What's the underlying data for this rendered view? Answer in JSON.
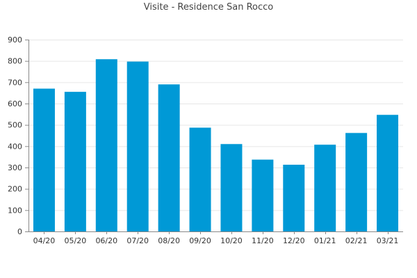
{
  "chart_data": {
    "type": "bar",
    "title": "Visite - Residence San Rocco",
    "xlabel": "",
    "ylabel": "",
    "categories": [
      "04/20",
      "05/20",
      "06/20",
      "07/20",
      "08/20",
      "09/20",
      "10/20",
      "11/20",
      "12/20",
      "01/21",
      "02/21",
      "03/21"
    ],
    "values": [
      670,
      655,
      808,
      797,
      690,
      487,
      410,
      337,
      313,
      407,
      462,
      547
    ],
    "ylim": [
      0,
      900
    ],
    "yticks": [
      0,
      100,
      200,
      300,
      400,
      500,
      600,
      700,
      800,
      900
    ],
    "grid": true,
    "legend": "none",
    "bar_color": "#0099d6",
    "grid_color": "#e6e6e6",
    "axis_color": "#888888"
  }
}
